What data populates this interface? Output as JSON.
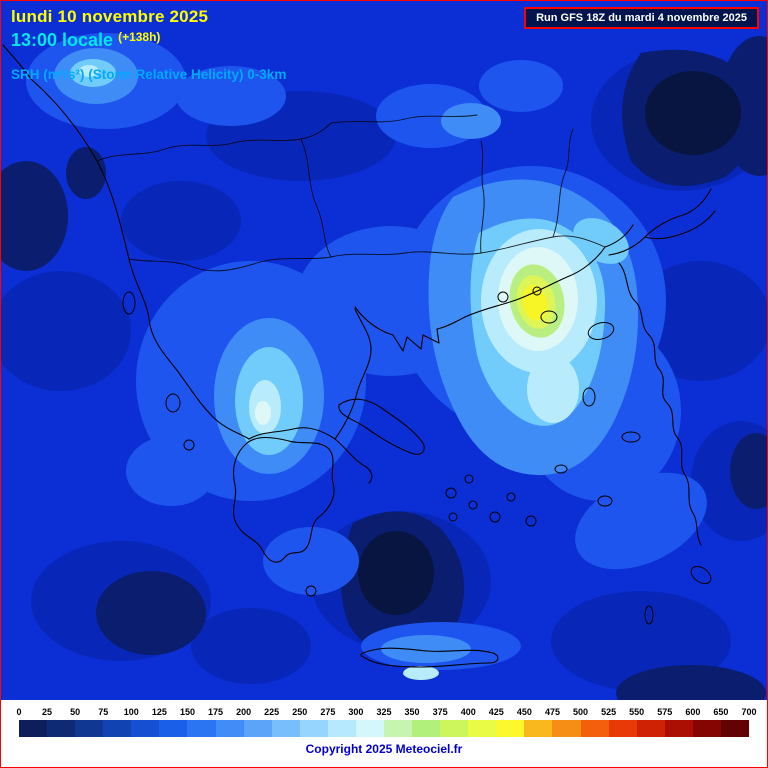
{
  "header": {
    "date_line": "lundi 10 novembre 2025",
    "time_line": "13:00 locale",
    "forecast_offset": "(+138h)",
    "parameter_line": "SRH (m²/s²) (Storm Relative Helicity) 0-3km",
    "run_info": "Run GFS 18Z du mardi 4 novembre 2025"
  },
  "colors": {
    "frame": "#ff0000",
    "map_base": "#0b2fd4",
    "date_text": "#ffff00",
    "time_text": "#00e8e8",
    "parameter_text": "#00aaff",
    "run_box_background": "#00154d",
    "run_box_border": "#ff0000",
    "run_box_text": "#ffffff",
    "copyright_text": "#0000cc",
    "srh_max_core": "#f8f527"
  },
  "colorbar": {
    "tick_labels": [
      "0",
      "25",
      "50",
      "75",
      "100",
      "125",
      "150",
      "175",
      "200",
      "225",
      "250",
      "275",
      "300",
      "325",
      "350",
      "375",
      "400",
      "425",
      "450",
      "475",
      "500",
      "525",
      "550",
      "575",
      "600",
      "650",
      "700"
    ],
    "colors": [
      "#0d1f5a",
      "#0e2a74",
      "#103792",
      "#1243b2",
      "#1550d2",
      "#1a5fe8",
      "#2b74f2",
      "#418cf7",
      "#5ba4fa",
      "#78bdfc",
      "#96d5fd",
      "#b6e9fe",
      "#d4f7fb",
      "#c6f5b0",
      "#b2f07c",
      "#ccf65c",
      "#e9fb44",
      "#fdf82e",
      "#f9b81e",
      "#f68d14",
      "#f2600c",
      "#e83a06",
      "#cf2104",
      "#ab0f03",
      "#850502",
      "#620201"
    ]
  },
  "footer": {
    "copyright": "Copyright 2025 Meteociel.fr"
  }
}
